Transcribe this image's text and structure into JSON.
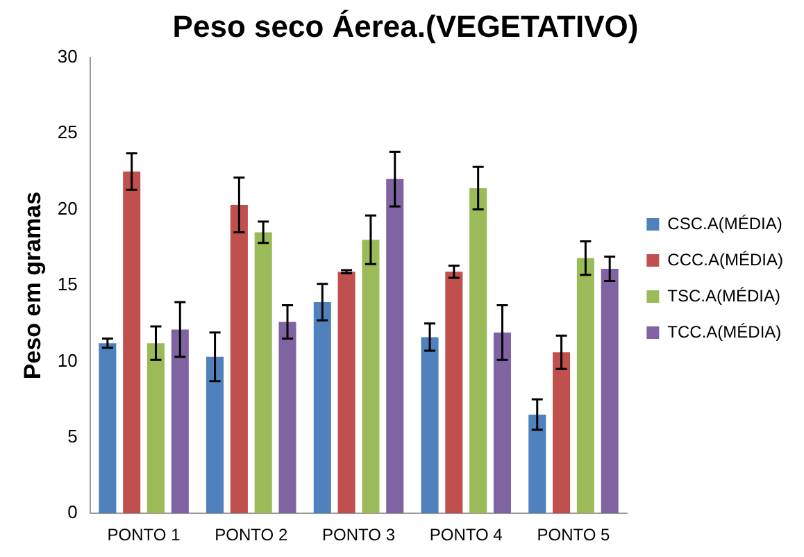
{
  "chart_data": {
    "type": "bar",
    "title": "Peso seco Áerea.(VEGETATIVO)",
    "ylabel": "Peso em gramas",
    "categories": [
      "PONTO 1",
      "PONTO 2",
      "PONTO 3",
      "PONTO 4",
      "PONTO 5"
    ],
    "series": [
      {
        "name": "CSC.A(MÉDIA)",
        "color": "#4f81bd",
        "values": [
          11.2,
          10.3,
          13.9,
          11.6,
          6.5
        ],
        "errors": [
          0.3,
          1.6,
          1.2,
          0.9,
          1.0
        ]
      },
      {
        "name": "CCC.A(MÉDIA)",
        "color": "#c0504d",
        "values": [
          22.5,
          20.3,
          15.9,
          15.9,
          10.6
        ],
        "errors": [
          1.2,
          1.8,
          0.1,
          0.4,
          1.1
        ]
      },
      {
        "name": "TSC.A(MÉDIA)",
        "color": "#9bbb59",
        "values": [
          11.2,
          18.5,
          18.0,
          21.4,
          16.8
        ],
        "errors": [
          1.1,
          0.7,
          1.6,
          1.4,
          1.1
        ]
      },
      {
        "name": "TCC.A(MÉDIA)",
        "color": "#8064a2",
        "values": [
          12.1,
          12.6,
          22.0,
          11.9,
          16.1
        ],
        "errors": [
          1.8,
          1.1,
          1.8,
          1.8,
          0.8
        ]
      }
    ],
    "ylim": [
      0,
      30
    ],
    "yticks": [
      0,
      5,
      10,
      15,
      20,
      25,
      30
    ],
    "grid": false,
    "legend": "right"
  }
}
